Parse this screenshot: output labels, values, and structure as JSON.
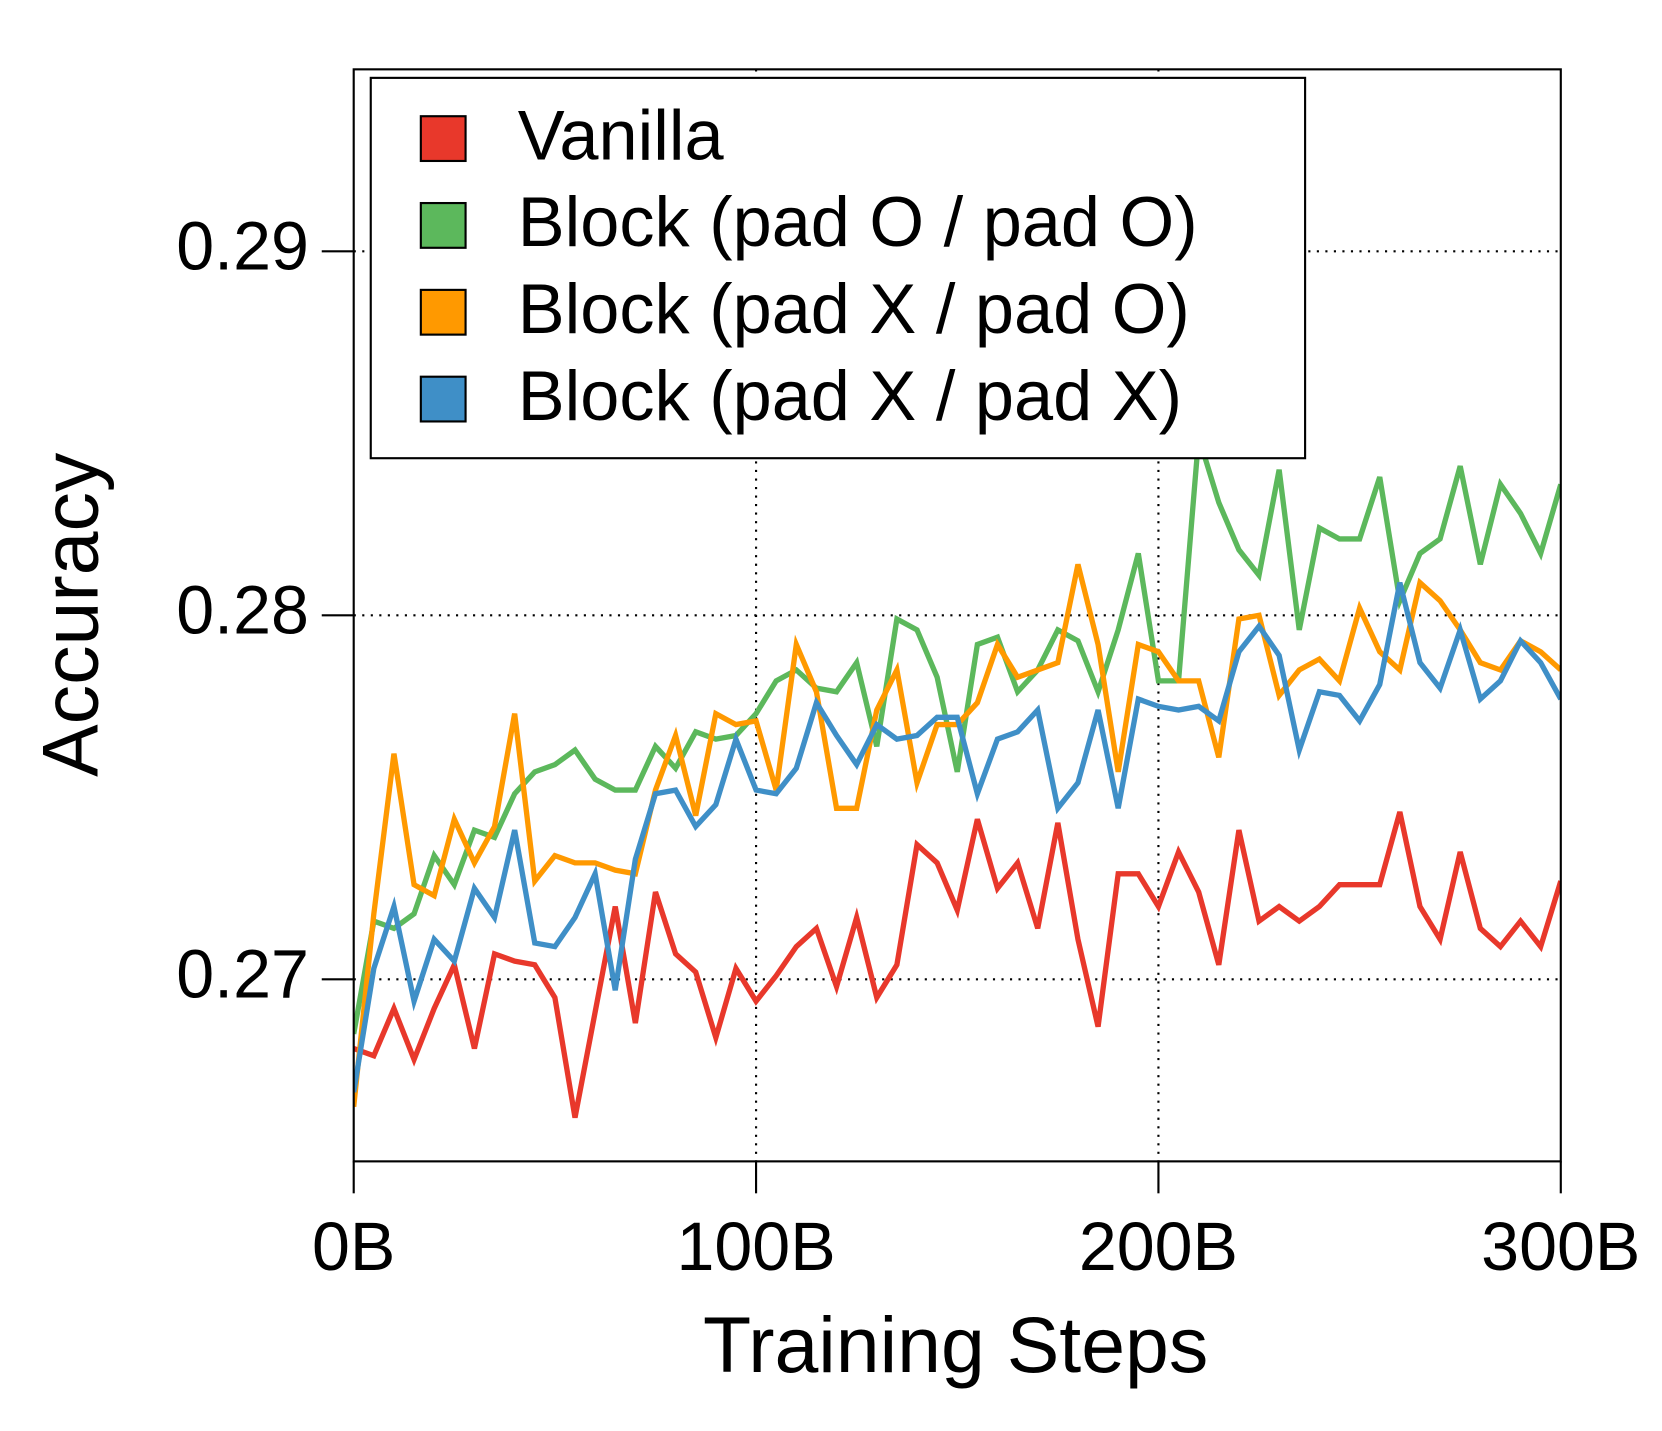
{
  "chart_data": {
    "type": "line",
    "x_label": "Training Steps",
    "y_label": "Accuracy",
    "x": [
      0,
      5,
      10,
      15,
      20,
      25,
      30,
      35,
      40,
      45,
      50,
      55,
      60,
      65,
      70,
      75,
      80,
      85,
      90,
      95,
      100,
      105,
      110,
      115,
      120,
      125,
      130,
      135,
      140,
      145,
      150,
      155,
      160,
      165,
      170,
      175,
      180,
      185,
      190,
      195,
      200,
      205,
      210,
      215,
      220,
      225,
      230,
      235,
      240,
      245,
      250,
      255,
      260,
      265,
      270,
      275,
      280,
      285,
      290,
      295,
      300
    ],
    "series": [
      {
        "name": "Vanilla",
        "color": "#e8382b",
        "values": [
          0.2681,
          0.2679,
          0.2692,
          0.2678,
          0.2692,
          0.2704,
          0.2681,
          0.2707,
          0.2705,
          0.2704,
          0.2695,
          0.2662,
          0.2691,
          0.272,
          0.2688,
          0.2724,
          0.2707,
          0.2702,
          0.2684,
          0.2703,
          0.2694,
          0.2701,
          0.2709,
          0.2714,
          0.2698,
          0.2717,
          0.2695,
          0.2704,
          0.2737,
          0.2732,
          0.2719,
          0.2744,
          0.2725,
          0.2732,
          0.2714,
          0.2743,
          0.2711,
          0.2687,
          0.2729,
          0.2729,
          0.272,
          0.2735,
          0.2724,
          0.2704,
          0.2741,
          0.2716,
          0.272,
          0.2716,
          0.272,
          0.2726,
          0.2726,
          0.2726,
          0.2746,
          0.272,
          0.2711,
          0.2735,
          0.2714,
          0.2709,
          0.2716,
          0.2709,
          0.2727
        ]
      },
      {
        "name": "Block (pad O / pad O)",
        "color": "#5cb85c",
        "values": [
          0.2685,
          0.2716,
          0.2714,
          0.2718,
          0.2734,
          0.2726,
          0.2741,
          0.2739,
          0.2751,
          0.2757,
          0.2759,
          0.2763,
          0.2755,
          0.2752,
          0.2752,
          0.2764,
          0.2758,
          0.2768,
          0.2766,
          0.2767,
          0.2773,
          0.2782,
          0.2785,
          0.278,
          0.2779,
          0.2787,
          0.2764,
          0.2799,
          0.2796,
          0.2783,
          0.2757,
          0.2792,
          0.2794,
          0.2779,
          0.2785,
          0.2796,
          0.2793,
          0.2779,
          0.2796,
          0.2817,
          0.2782,
          0.2782,
          0.2849,
          0.2831,
          0.2818,
          0.2811,
          0.284,
          0.2796,
          0.2824,
          0.2821,
          0.2821,
          0.2838,
          0.2804,
          0.2817,
          0.2821,
          0.2841,
          0.2814,
          0.2836,
          0.2828,
          0.2817,
          0.2836
        ]
      },
      {
        "name": "Block (pad X / pad O)",
        "color": "#ff9900",
        "values": [
          0.2665,
          0.2718,
          0.2762,
          0.2726,
          0.2723,
          0.2744,
          0.2732,
          0.2742,
          0.2773,
          0.2727,
          0.2734,
          0.2732,
          0.2732,
          0.273,
          0.2729,
          0.2752,
          0.2767,
          0.2745,
          0.2773,
          0.277,
          0.2771,
          0.2752,
          0.2792,
          0.2779,
          0.2747,
          0.2747,
          0.2774,
          0.2785,
          0.2754,
          0.277,
          0.277,
          0.2776,
          0.2792,
          0.2783,
          0.2785,
          0.2787,
          0.2814,
          0.2792,
          0.2757,
          0.2792,
          0.279,
          0.2782,
          0.2782,
          0.2761,
          0.2799,
          0.28,
          0.2778,
          0.2785,
          0.2788,
          0.2782,
          0.2802,
          0.279,
          0.2785,
          0.2809,
          0.2804,
          0.2796,
          0.2787,
          0.2785,
          0.2793,
          0.279,
          0.2785
        ]
      },
      {
        "name": "Block (pad X / pad X)",
        "color": "#3f8fc7",
        "values": [
          0.2669,
          0.2703,
          0.272,
          0.2694,
          0.2711,
          0.2705,
          0.2725,
          0.2717,
          0.2741,
          0.271,
          0.2709,
          0.2717,
          0.2729,
          0.2697,
          0.2733,
          0.2751,
          0.2752,
          0.2742,
          0.2748,
          0.2766,
          0.2752,
          0.2751,
          0.2758,
          0.2776,
          0.2767,
          0.2759,
          0.277,
          0.2766,
          0.2767,
          0.2772,
          0.2772,
          0.2751,
          0.2766,
          0.2768,
          0.2774,
          0.2747,
          0.2754,
          0.2774,
          0.2747,
          0.2777,
          0.2775,
          0.2774,
          0.2775,
          0.2771,
          0.279,
          0.2797,
          0.2789,
          0.2763,
          0.2779,
          0.2778,
          0.2771,
          0.2781,
          0.2809,
          0.2787,
          0.278,
          0.2796,
          0.2777,
          0.2782,
          0.2793,
          0.2787,
          0.2777
        ]
      }
    ],
    "xlim": [
      0,
      300
    ],
    "xticks": [
      {
        "value": 0,
        "label": "0B"
      },
      {
        "value": 100,
        "label": "100B"
      },
      {
        "value": 200,
        "label": "200B"
      },
      {
        "value": 300,
        "label": "300B"
      }
    ],
    "ylim": [
      0.265,
      0.295
    ],
    "yticks": [
      0.27,
      0.28,
      0.29
    ],
    "grid": true,
    "legend": "upper left"
  }
}
